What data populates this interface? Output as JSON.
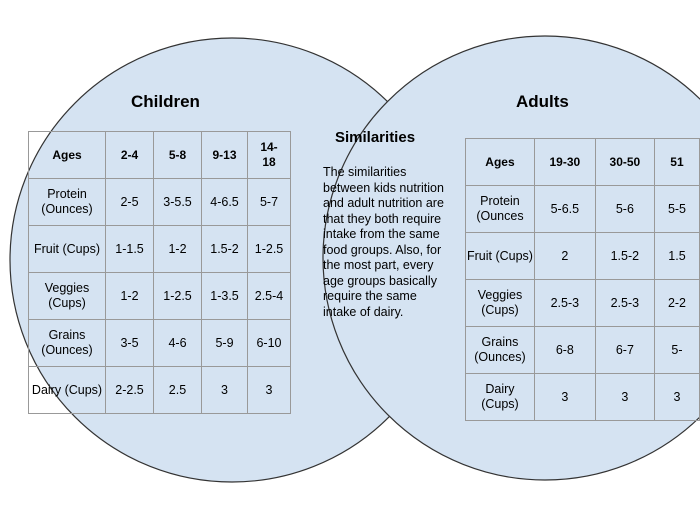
{
  "colors": {
    "circle_fill": "#d5e3f2",
    "circle_stroke": "#333333",
    "grid": "#999999"
  },
  "children": {
    "title": "Children",
    "headers": [
      "Ages",
      "2-4",
      "5-8",
      "9-13",
      "14-\n18"
    ],
    "rows": [
      [
        "Protein (Ounces)",
        "2-5",
        "3-5.5",
        "4-6.5",
        "5-7"
      ],
      [
        "Fruit (Cups)",
        "1-1.5",
        "1-2",
        "1.5-2",
        "1-2.5"
      ],
      [
        "Veggies (Cups)",
        "1-2",
        "1-2.5",
        "1-3.5",
        "2.5-4"
      ],
      [
        "Grains (Ounces)",
        "3-5",
        "4-6",
        "5-9",
        "6-10"
      ],
      [
        "Dairy (Cups)",
        "2-2.5",
        "2.5",
        "3",
        "3"
      ]
    ]
  },
  "adults": {
    "title": "Adults",
    "headers": [
      "Ages",
      "19-30",
      "30-50",
      "51"
    ],
    "rows": [
      [
        "Protein (Ounces",
        "5-6.5",
        "5-6",
        "5-5"
      ],
      [
        "Fruit (Cups)",
        "2",
        "1.5-2",
        "1.5"
      ],
      [
        "Veggies (Cups)",
        "2.5-3",
        "2.5-3",
        "2-2"
      ],
      [
        "Grains (Ounces)",
        "6-8",
        "6-7",
        "5-"
      ],
      [
        "Dairy (Cups)",
        "3",
        "3",
        "3"
      ]
    ]
  },
  "similarities": {
    "title": "Similarities",
    "text": "The similarities between kids nutrition and adult nutrition are that they both require intake from the same food groups. Also, for the most part, every age groups basically require the same intake of dairy."
  }
}
